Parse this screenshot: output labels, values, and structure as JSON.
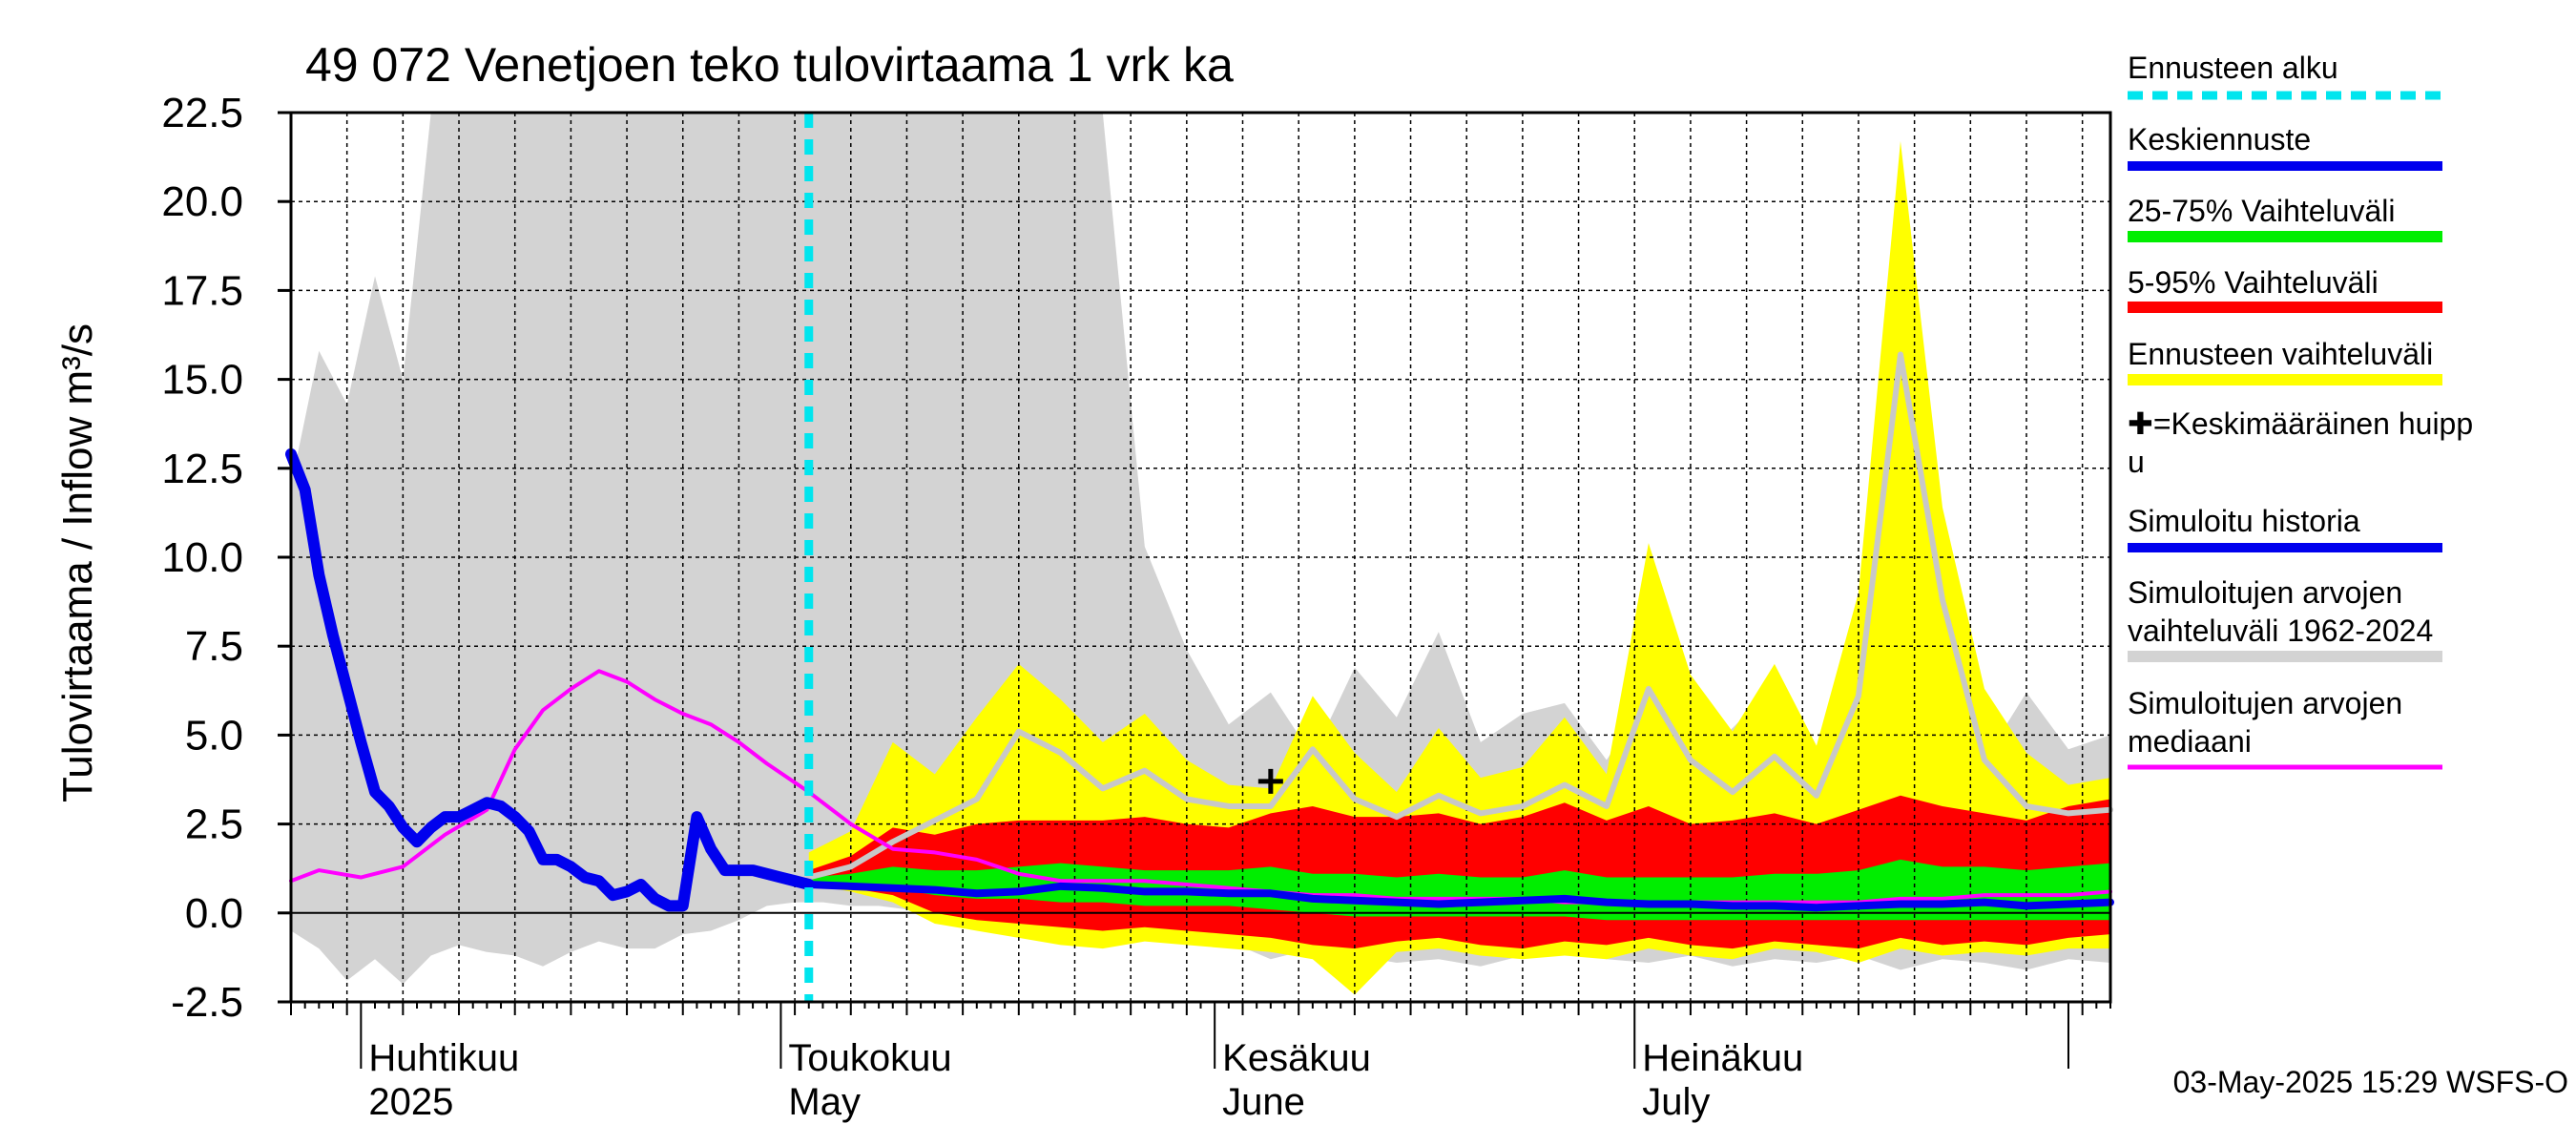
{
  "chart_data": {
    "type": "area",
    "title": "49 072 Venetjoen teko tulovirtaama 1 vrk ka",
    "ylabel": "Tulovirtaama / Inflow   m³/s",
    "ylim": [
      -2.5,
      22.5
    ],
    "yticks": [
      -2.5,
      0.0,
      2.5,
      5.0,
      7.5,
      10.0,
      12.5,
      15.0,
      17.5,
      20.0,
      22.5
    ],
    "ytick_labels": [
      "-2.5",
      "0.0",
      "2.5",
      "5.0",
      "7.5",
      "10.0",
      "12.5",
      "15.0",
      "17.5",
      "20.0",
      "22.5"
    ],
    "x_range": [
      "2025-03-27",
      "2025-08-04"
    ],
    "month_labels": [
      {
        "date": "2025-04-01",
        "fi": "Huhtikuu",
        "en": "2025"
      },
      {
        "date": "2025-05-01",
        "fi": "Toukokuu",
        "en": "May"
      },
      {
        "date": "2025-06-01",
        "fi": "Kesäkuu",
        "en": "June"
      },
      {
        "date": "2025-07-01",
        "fi": "Heinäkuu",
        "en": "July"
      }
    ],
    "forecast_start": "2025-05-03",
    "mean_peak": {
      "date": "2025-06-05",
      "value": 3.7
    },
    "grid": true,
    "legend_position": "right",
    "colors": {
      "forecast_start": "#00e5ee",
      "mean_forecast": "#0000ee",
      "range_25_75": "#00ee00",
      "range_5_95": "#ff0000",
      "forecast_range": "#ffff00",
      "simulated_history": "#0000ee",
      "history_range": "#d3d3d3",
      "history_median": "#ff00ff"
    },
    "series": [
      {
        "name": "Simuloitu historia",
        "x": [
          "2025-03-27",
          "2025-03-28",
          "2025-03-29",
          "2025-03-30",
          "2025-03-31",
          "2025-04-01",
          "2025-04-02",
          "2025-04-03",
          "2025-04-04",
          "2025-04-05",
          "2025-04-06",
          "2025-04-07",
          "2025-04-08",
          "2025-04-09",
          "2025-04-10",
          "2025-04-11",
          "2025-04-12",
          "2025-04-13",
          "2025-04-14",
          "2025-04-15",
          "2025-04-16",
          "2025-04-17",
          "2025-04-18",
          "2025-04-19",
          "2025-04-20",
          "2025-04-21",
          "2025-04-22",
          "2025-04-23",
          "2025-04-24",
          "2025-04-25",
          "2025-04-26",
          "2025-04-27",
          "2025-04-28",
          "2025-04-29",
          "2025-04-30",
          "2025-05-01",
          "2025-05-02",
          "2025-05-03"
        ],
        "y": [
          12.9,
          11.9,
          9.5,
          7.8,
          6.3,
          4.8,
          3.4,
          3.0,
          2.4,
          2.0,
          2.4,
          2.7,
          2.7,
          2.9,
          3.1,
          3.0,
          2.7,
          2.3,
          1.5,
          1.5,
          1.3,
          1.0,
          0.9,
          0.5,
          0.6,
          0.8,
          0.4,
          0.2,
          0.2,
          2.7,
          1.8,
          1.2,
          1.2,
          1.2,
          1.1,
          1.0,
          0.9,
          0.8
        ]
      },
      {
        "name": "Keskiennuste",
        "x": [
          "2025-05-03",
          "2025-05-06",
          "2025-05-09",
          "2025-05-12",
          "2025-05-15",
          "2025-05-18",
          "2025-05-21",
          "2025-05-24",
          "2025-05-27",
          "2025-05-30",
          "2025-06-02",
          "2025-06-05",
          "2025-06-08",
          "2025-06-11",
          "2025-06-14",
          "2025-06-17",
          "2025-06-20",
          "2025-06-23",
          "2025-06-26",
          "2025-06-29",
          "2025-07-02",
          "2025-07-05",
          "2025-07-08",
          "2025-07-11",
          "2025-07-14",
          "2025-07-17",
          "2025-07-20",
          "2025-07-23",
          "2025-07-26",
          "2025-07-29",
          "2025-08-01",
          "2025-08-04"
        ],
        "y": [
          0.8,
          0.75,
          0.7,
          0.65,
          0.55,
          0.6,
          0.75,
          0.7,
          0.6,
          0.6,
          0.55,
          0.55,
          0.4,
          0.35,
          0.3,
          0.25,
          0.3,
          0.35,
          0.4,
          0.3,
          0.25,
          0.25,
          0.2,
          0.2,
          0.15,
          0.2,
          0.25,
          0.25,
          0.3,
          0.2,
          0.25,
          0.3
        ]
      },
      {
        "name": "Simuloitujen arvojen mediaani",
        "x": [
          "2025-03-27",
          "2025-03-29",
          "2025-04-01",
          "2025-04-04",
          "2025-04-07",
          "2025-04-10",
          "2025-04-12",
          "2025-04-14",
          "2025-04-16",
          "2025-04-18",
          "2025-04-20",
          "2025-04-22",
          "2025-04-24",
          "2025-04-26",
          "2025-04-28",
          "2025-04-30",
          "2025-05-03",
          "2025-05-06",
          "2025-05-09",
          "2025-05-12",
          "2025-05-15",
          "2025-05-18",
          "2025-05-21",
          "2025-05-24",
          "2025-05-27",
          "2025-05-30",
          "2025-06-02",
          "2025-06-05",
          "2025-06-08",
          "2025-06-11",
          "2025-06-14",
          "2025-06-17",
          "2025-06-20",
          "2025-06-23",
          "2025-06-26",
          "2025-06-29",
          "2025-07-02",
          "2025-07-05",
          "2025-07-08",
          "2025-07-11",
          "2025-07-14",
          "2025-07-17",
          "2025-07-20",
          "2025-07-23",
          "2025-07-26",
          "2025-07-29",
          "2025-08-01",
          "2025-08-04"
        ],
        "y": [
          0.9,
          1.2,
          1.0,
          1.3,
          2.2,
          2.9,
          4.6,
          5.7,
          6.3,
          6.8,
          6.5,
          6.0,
          5.6,
          5.3,
          4.8,
          4.2,
          3.4,
          2.5,
          1.8,
          1.7,
          1.5,
          1.1,
          0.9,
          0.9,
          0.9,
          0.8,
          0.7,
          0.6,
          0.5,
          0.5,
          0.4,
          0.4,
          0.4,
          0.4,
          0.3,
          0.3,
          0.3,
          0.3,
          0.3,
          0.3,
          0.3,
          0.3,
          0.4,
          0.4,
          0.5,
          0.5,
          0.5,
          0.6
        ]
      },
      {
        "name": "Ennusteen vaihteluväli",
        "x": [
          "2025-05-03",
          "2025-05-06",
          "2025-05-09",
          "2025-05-12",
          "2025-05-15",
          "2025-05-18",
          "2025-05-21",
          "2025-05-24",
          "2025-05-27",
          "2025-05-30",
          "2025-06-02",
          "2025-06-05",
          "2025-06-08",
          "2025-06-11",
          "2025-06-14",
          "2025-06-17",
          "2025-06-20",
          "2025-06-23",
          "2025-06-26",
          "2025-06-29",
          "2025-07-02",
          "2025-07-05",
          "2025-07-08",
          "2025-07-11",
          "2025-07-14",
          "2025-07-17",
          "2025-07-20",
          "2025-07-23",
          "2025-07-26",
          "2025-07-29",
          "2025-08-01",
          "2025-08-04"
        ],
        "lower": [
          0.8,
          0.6,
          0.3,
          -0.3,
          -0.5,
          -0.7,
          -0.9,
          -1.0,
          -0.8,
          -0.9,
          -1.0,
          -1.1,
          -1.3,
          -2.3,
          -1.1,
          -1.0,
          -1.2,
          -1.3,
          -1.2,
          -1.3,
          -1.0,
          -1.2,
          -1.3,
          -1.0,
          -1.1,
          -1.4,
          -1.0,
          -1.2,
          -1.1,
          -1.2,
          -1.0,
          -1.0
        ],
        "upper": [
          1.7,
          2.3,
          4.8,
          3.9,
          5.5,
          7.0,
          6.0,
          4.8,
          5.6,
          4.3,
          3.6,
          3.5,
          6.1,
          4.5,
          3.4,
          5.2,
          3.8,
          4.1,
          5.5,
          3.9,
          10.4,
          6.7,
          5.1,
          7.0,
          4.7,
          9.0,
          21.7,
          11.4,
          6.3,
          4.5,
          3.6,
          3.8
        ]
      },
      {
        "name": "5-95% Vaihteluväli",
        "x": [
          "2025-05-03",
          "2025-05-06",
          "2025-05-09",
          "2025-05-12",
          "2025-05-15",
          "2025-05-18",
          "2025-05-21",
          "2025-05-24",
          "2025-05-27",
          "2025-05-30",
          "2025-06-02",
          "2025-06-05",
          "2025-06-08",
          "2025-06-11",
          "2025-06-14",
          "2025-06-17",
          "2025-06-20",
          "2025-06-23",
          "2025-06-26",
          "2025-06-29",
          "2025-07-02",
          "2025-07-05",
          "2025-07-08",
          "2025-07-11",
          "2025-07-14",
          "2025-07-17",
          "2025-07-20",
          "2025-07-23",
          "2025-07-26",
          "2025-07-29",
          "2025-08-01",
          "2025-08-04"
        ],
        "lower": [
          0.9,
          0.7,
          0.5,
          0.0,
          -0.2,
          -0.3,
          -0.4,
          -0.5,
          -0.4,
          -0.5,
          -0.6,
          -0.7,
          -0.9,
          -1.0,
          -0.8,
          -0.7,
          -0.9,
          -1.0,
          -0.8,
          -0.9,
          -0.7,
          -0.9,
          -1.0,
          -0.8,
          -0.9,
          -1.0,
          -0.7,
          -0.9,
          -0.8,
          -0.9,
          -0.7,
          -0.6
        ],
        "upper": [
          1.2,
          1.6,
          2.4,
          2.2,
          2.5,
          2.6,
          2.6,
          2.6,
          2.7,
          2.5,
          2.4,
          2.8,
          3.0,
          2.7,
          2.7,
          2.8,
          2.5,
          2.7,
          3.1,
          2.6,
          3.0,
          2.5,
          2.6,
          2.8,
          2.5,
          2.9,
          3.3,
          3.0,
          2.8,
          2.6,
          3.0,
          3.2
        ]
      },
      {
        "name": "25-75% Vaihteluväli",
        "x": [
          "2025-05-03",
          "2025-05-06",
          "2025-05-09",
          "2025-05-12",
          "2025-05-15",
          "2025-05-18",
          "2025-05-21",
          "2025-05-24",
          "2025-05-27",
          "2025-05-30",
          "2025-06-02",
          "2025-06-05",
          "2025-06-08",
          "2025-06-11",
          "2025-06-14",
          "2025-06-17",
          "2025-06-20",
          "2025-06-23",
          "2025-06-26",
          "2025-06-29",
          "2025-07-02",
          "2025-07-05",
          "2025-07-08",
          "2025-07-11",
          "2025-07-14",
          "2025-07-17",
          "2025-07-20",
          "2025-07-23",
          "2025-07-26",
          "2025-07-29",
          "2025-08-01",
          "2025-08-04"
        ],
        "lower": [
          0.9,
          0.8,
          0.7,
          0.5,
          0.4,
          0.4,
          0.3,
          0.3,
          0.2,
          0.2,
          0.2,
          0.1,
          0.0,
          -0.1,
          -0.1,
          -0.1,
          -0.1,
          -0.1,
          -0.1,
          -0.2,
          -0.2,
          -0.2,
          -0.2,
          -0.2,
          -0.2,
          -0.2,
          -0.2,
          -0.2,
          -0.2,
          -0.2,
          -0.2,
          -0.2
        ],
        "upper": [
          1.0,
          1.1,
          1.3,
          1.2,
          1.2,
          1.3,
          1.4,
          1.3,
          1.2,
          1.2,
          1.2,
          1.3,
          1.1,
          1.1,
          1.0,
          1.1,
          1.0,
          1.0,
          1.2,
          1.0,
          1.0,
          1.0,
          1.0,
          1.1,
          1.1,
          1.2,
          1.5,
          1.3,
          1.3,
          1.2,
          1.3,
          1.4
        ]
      },
      {
        "name": "Simuloitujen arvojen vaihteluväli 1962-2024",
        "x": [
          "2025-03-27",
          "2025-03-29",
          "2025-03-31",
          "2025-04-02",
          "2025-04-04",
          "2025-04-06",
          "2025-04-08",
          "2025-04-10",
          "2025-04-12",
          "2025-04-14",
          "2025-04-16",
          "2025-04-18",
          "2025-04-20",
          "2025-04-22",
          "2025-04-24",
          "2025-04-26",
          "2025-04-28",
          "2025-04-30",
          "2025-05-02",
          "2025-05-04",
          "2025-05-06",
          "2025-05-08",
          "2025-05-10",
          "2025-05-12",
          "2025-05-14",
          "2025-05-16",
          "2025-05-18",
          "2025-05-21",
          "2025-05-24",
          "2025-05-27",
          "2025-05-30",
          "2025-06-02",
          "2025-06-05",
          "2025-06-08",
          "2025-06-11",
          "2025-06-14",
          "2025-06-17",
          "2025-06-20",
          "2025-06-23",
          "2025-06-26",
          "2025-06-29",
          "2025-07-02",
          "2025-07-05",
          "2025-07-08",
          "2025-07-11",
          "2025-07-14",
          "2025-07-17",
          "2025-07-20",
          "2025-07-23",
          "2025-07-26",
          "2025-07-29",
          "2025-08-01",
          "2025-08-04"
        ],
        "lower": [
          -0.5,
          -1.0,
          -1.9,
          -1.3,
          -2.0,
          -1.2,
          -0.9,
          -1.1,
          -1.2,
          -1.5,
          -1.1,
          -0.8,
          -1.0,
          -1.0,
          -0.6,
          -0.5,
          -0.2,
          0.2,
          0.3,
          0.3,
          0.2,
          0.2,
          0.1,
          0.0,
          -0.1,
          -0.2,
          -0.3,
          -0.5,
          -0.5,
          -0.4,
          -0.6,
          -0.8,
          -1.3,
          -1.0,
          -1.2,
          -1.4,
          -1.3,
          -1.5,
          -1.2,
          -1.1,
          -1.3,
          -1.4,
          -1.2,
          -1.5,
          -1.3,
          -1.4,
          -1.2,
          -1.6,
          -1.3,
          -1.4,
          -1.6,
          -1.3,
          -1.4
        ],
        "upper": [
          12.0,
          15.8,
          14.3,
          17.9,
          15.0,
          22.5,
          22.5,
          22.5,
          22.5,
          22.5,
          22.5,
          22.5,
          22.5,
          22.5,
          22.5,
          22.5,
          22.5,
          22.5,
          22.5,
          22.5,
          22.5,
          22.5,
          22.5,
          22.5,
          22.5,
          22.5,
          22.5,
          22.5,
          22.5,
          10.3,
          7.4,
          5.3,
          6.2,
          4.4,
          6.9,
          5.5,
          7.9,
          4.8,
          5.6,
          5.9,
          4.3,
          6.1,
          4.1,
          5.2,
          6.4,
          4.5,
          5.1,
          4.1,
          5.4,
          4.3,
          6.2,
          4.6,
          5.0
        ]
      },
      {
        "name": "history_upper_median_line",
        "x": [
          "2025-05-03",
          "2025-05-06",
          "2025-05-09",
          "2025-05-12",
          "2025-05-15",
          "2025-05-18",
          "2025-05-21",
          "2025-05-24",
          "2025-05-27",
          "2025-05-30",
          "2025-06-02",
          "2025-06-05",
          "2025-06-08",
          "2025-06-11",
          "2025-06-14",
          "2025-06-17",
          "2025-06-20",
          "2025-06-23",
          "2025-06-26",
          "2025-06-29",
          "2025-07-02",
          "2025-07-05",
          "2025-07-08",
          "2025-07-11",
          "2025-07-14",
          "2025-07-17",
          "2025-07-20",
          "2025-07-23",
          "2025-07-26",
          "2025-07-29",
          "2025-08-01",
          "2025-08-04"
        ],
        "y": [
          1.0,
          1.3,
          2.0,
          2.6,
          3.2,
          5.1,
          4.5,
          3.5,
          4.0,
          3.2,
          3.0,
          3.0,
          4.6,
          3.2,
          2.7,
          3.3,
          2.8,
          3.0,
          3.6,
          3.0,
          6.3,
          4.3,
          3.4,
          4.4,
          3.3,
          6.1,
          15.7,
          8.8,
          4.3,
          3.0,
          2.8,
          2.9
        ]
      }
    ],
    "legend": [
      {
        "label": "Ennusteen alku",
        "style": "dashed",
        "color": "#00e5ee"
      },
      {
        "label": "Keskiennuste",
        "style": "line",
        "color": "#0000ee"
      },
      {
        "label": "25-75% Vaihteluväli",
        "style": "band",
        "color": "#00ee00"
      },
      {
        "label": "5-95% Vaihteluväli",
        "style": "band",
        "color": "#ff0000"
      },
      {
        "label": "Ennusteen vaihteluväli",
        "style": "band",
        "color": "#ffff00"
      },
      {
        "label": "✚=Keskimääräinen huipp\nu",
        "style": "marker",
        "color": "#000000"
      },
      {
        "label": "Simuloitu historia",
        "style": "line",
        "color": "#0000ee"
      },
      {
        "label": "Simuloitujen arvojen\nvaihteluväli 1962-2024",
        "style": "band",
        "color": "#d3d3d3"
      },
      {
        "label": "Simuloitujen arvojen\nmediaani",
        "style": "line",
        "color": "#ff00ff"
      }
    ]
  },
  "footer": {
    "timestamp": "03-May-2025 15:29 WSFS-O"
  }
}
